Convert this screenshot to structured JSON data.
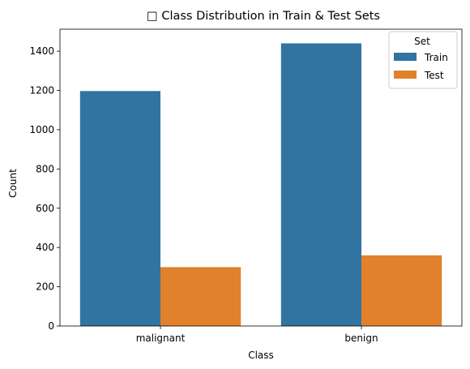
{
  "chart_data": {
    "type": "bar",
    "title": "□ Class Distribution in Train & Test Sets",
    "xlabel": "Class",
    "ylabel": "Count",
    "categories": [
      "malignant",
      "benign"
    ],
    "series": [
      {
        "name": "Train",
        "values": [
          1197,
          1440
        ],
        "color": "#3274a1"
      },
      {
        "name": "Test",
        "values": [
          300,
          360
        ],
        "color": "#e1812c"
      }
    ],
    "ylim": [
      0,
      1512
    ],
    "yticks": [
      0,
      200,
      400,
      600,
      800,
      1000,
      1200,
      1400
    ],
    "legend": {
      "title": "Set",
      "placement": "top-right"
    },
    "grid": false
  }
}
